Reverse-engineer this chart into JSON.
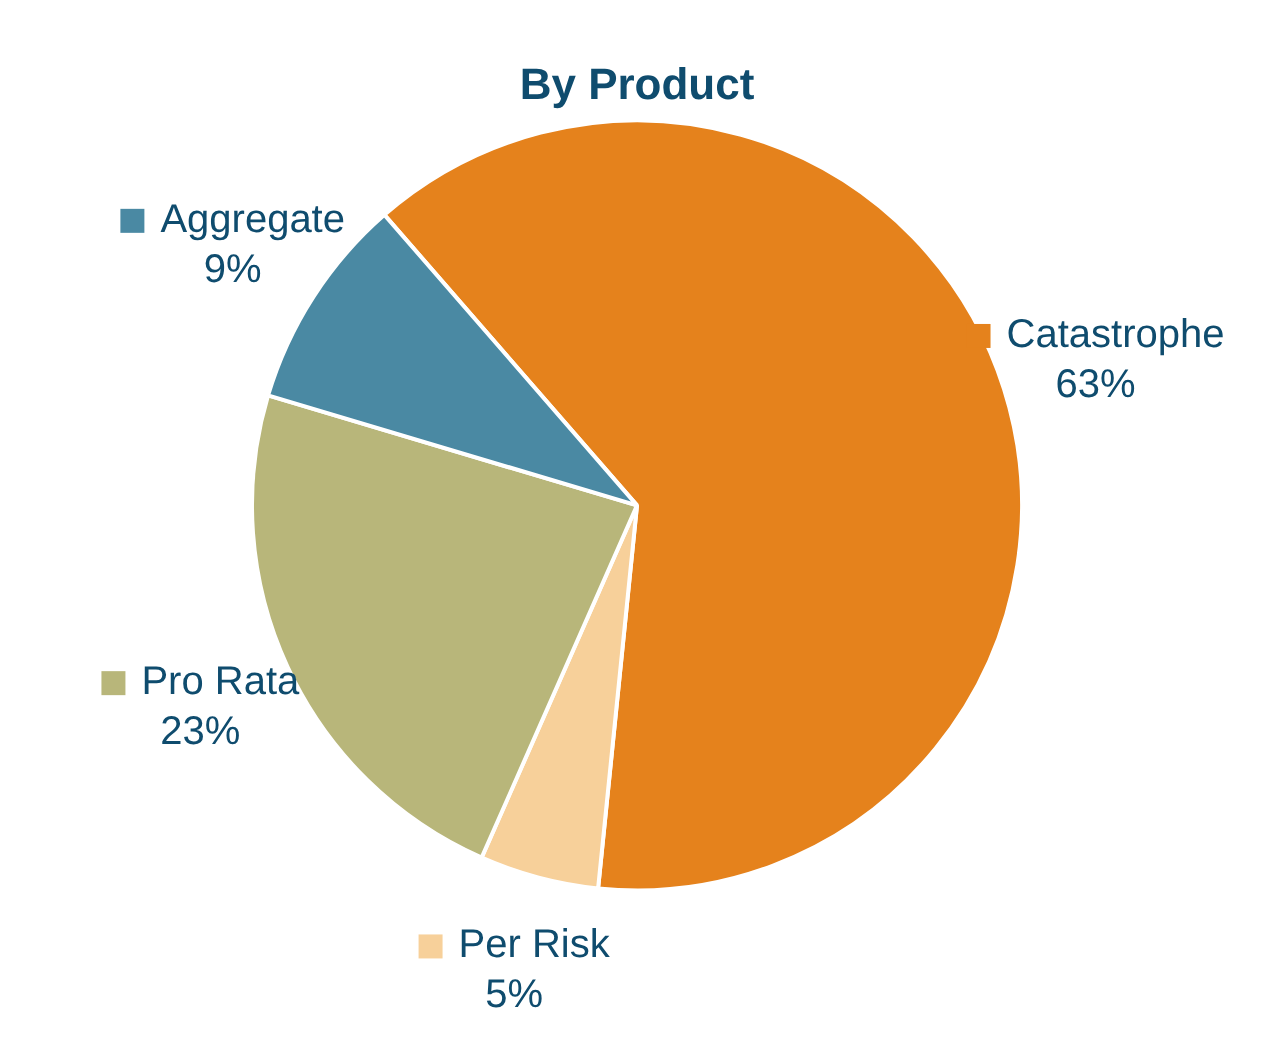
{
  "chart_data": {
    "type": "pie",
    "title": "By Product",
    "categories": [
      "Catastrophe",
      "Per Risk",
      "Pro Rata",
      "Aggregate"
    ],
    "values": [
      63,
      5,
      23,
      9
    ],
    "colors": [
      "#e5821c",
      "#f7d09a",
      "#b8b67a",
      "#4a89a3"
    ],
    "value_labels": [
      "63%",
      "5%",
      "23%",
      "9%"
    ],
    "legend": true
  }
}
